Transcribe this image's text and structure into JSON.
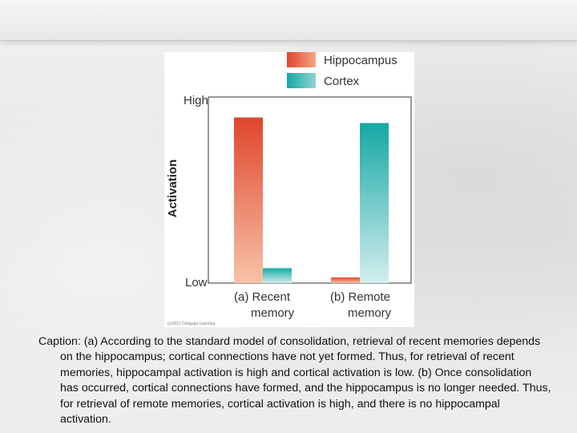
{
  "chart_data": {
    "type": "bar",
    "categories": [
      "(a) Recent memory",
      "(b) Remote memory"
    ],
    "category_lines": [
      [
        "(a) Recent",
        "memory"
      ],
      [
        "(b) Remote",
        "memory"
      ]
    ],
    "series": [
      {
        "name": "Hippocampus",
        "values": [
          0.89,
          0.03
        ],
        "color": "#e0452c"
      },
      {
        "name": "Cortex",
        "values": [
          0.08,
          0.86
        ],
        "color": "#15a8a4"
      }
    ],
    "ylabel": "Activation",
    "yticks": [
      "High",
      "Low"
    ],
    "ylim": [
      0,
      1
    ],
    "legend_position": "top-right",
    "credit": "(c)2011 Cengage Learning"
  },
  "caption": "Caption: (a) According to the standard model of consolidation, retrieval of recent memories depends on the hippocampus; cortical connections have not yet formed. Thus, for retrieval of recent memories, hippocampal activation is high and cortical activation is low. (b) Once consolidation has occurred, cortical connections have formed, and the hippocampus is no longer needed. Thus, for retrieval of remote memories, cortical activation is high, and there is no hippocampal activation."
}
